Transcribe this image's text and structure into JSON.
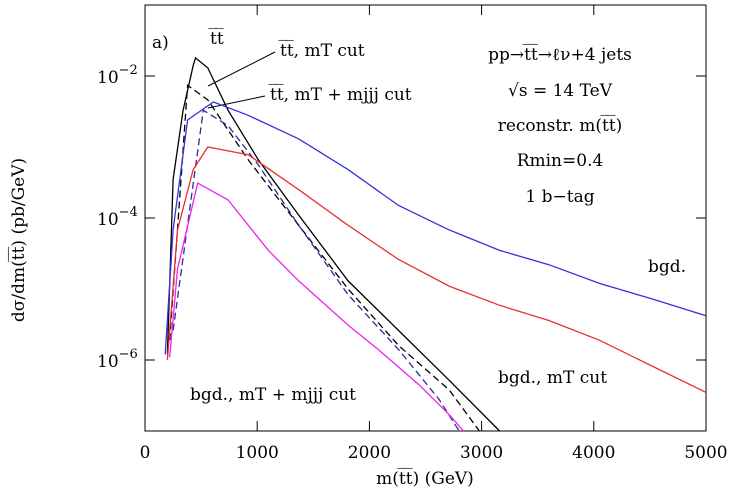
{
  "chart_data": {
    "type": "line",
    "panel_label": "a)",
    "x_label": "m(t̅t̅)  (GeV)",
    "y_label": "dσ/dm(t̅t̅)  (pb/GeV)",
    "annotations": [
      "pp→t̅t̅→ℓν+4 jets",
      "√s = 14 TeV",
      "reconstr. m(t̅t̅)",
      "Rmin=0.4",
      "1 b−tag"
    ],
    "xlim": [
      0,
      5000
    ],
    "xticks": [
      0,
      1000,
      2000,
      3000,
      4000,
      5000
    ],
    "ylim": [
      1e-07,
      0.1
    ],
    "log_y": true,
    "yticks": [
      {
        "value": 0.01,
        "label": "10",
        "exponent": "−2"
      },
      {
        "value": 0.0001,
        "label": "10",
        "exponent": "−4"
      },
      {
        "value": 1e-06,
        "label": "10",
        "exponent": "−6"
      }
    ],
    "series": [
      {
        "name": "t̅t̅",
        "color": "#000000",
        "dashed": false,
        "x": [
          200,
          250,
          340,
          430,
          450,
          560,
          740,
          1010,
          1370,
          1810,
          2260,
          2710,
          3160
        ],
        "values": [
          1.2e-06,
          0.00035,
          0.0033,
          0.014,
          0.018,
          0.013,
          0.0033,
          0.00066,
          0.00011,
          1.3e-05,
          2.6e-06,
          5.2e-07,
          1e-07
        ]
      },
      {
        "name": "t̅t̅, mT cut",
        "color": "#000000",
        "dashed": true,
        "x": [
          220,
          380,
          560,
          920,
          1370,
          1810,
          2260,
          2710,
          2980
        ],
        "values": [
          1.9e-06,
          0.0074,
          0.0046,
          0.00066,
          7.9e-05,
          1e-05,
          1.6e-06,
          3.8e-07,
          1e-07
        ]
      },
      {
        "name": "t̅t̅, mT + mjjj cut",
        "color": "#2a2aa0",
        "dashed": true,
        "x": [
          250,
          520,
          740,
          1010,
          1370,
          1810,
          2260,
          2620,
          2800
        ],
        "values": [
          2.6e-06,
          0.0033,
          0.002,
          0.00056,
          7.9e-05,
          8.3e-06,
          1.4e-06,
          2.8e-07,
          1e-07
        ]
      },
      {
        "name": "bgd.",
        "color": "#3333dd",
        "dashed": false,
        "x": [
          180,
          250,
          380,
          610,
          920,
          1370,
          1810,
          2260,
          2710,
          3160,
          3600,
          4050,
          4500,
          5000
        ],
        "values": [
          1.2e-06,
          6.8e-05,
          0.0024,
          0.0043,
          0.0028,
          0.0013,
          0.00048,
          0.00015,
          6.8e-05,
          3.5e-05,
          2.2e-05,
          1.2e-05,
          7.4e-06,
          4.2e-06
        ]
      },
      {
        "name": "bgd., mT cut",
        "color": "#e83030",
        "dashed": false,
        "x": [
          200,
          290,
          430,
          560,
          920,
          1370,
          1810,
          2260,
          2710,
          3160,
          3600,
          4050,
          4500,
          5000
        ],
        "values": [
          1e-06,
          6.8e-05,
          0.00048,
          0.001,
          0.00078,
          0.00025,
          7.9e-05,
          2.6e-05,
          1.1e-05,
          5.9e-06,
          3.6e-06,
          1.9e-06,
          8.5e-07,
          3.5e-07
        ]
      },
      {
        "name": "bgd., mT + mjjj cut",
        "color": "#ee22ee",
        "dashed": false,
        "x": [
          220,
          290,
          470,
          740,
          1100,
          1370,
          1810,
          2080,
          2440,
          2710,
          2840
        ],
        "values": [
          1.1e-06,
          1.9e-05,
          0.00031,
          0.00018,
          3.5e-05,
          1.3e-05,
          3.1e-06,
          1.4e-06,
          4.5e-07,
          1.7e-07,
          1e-07
        ]
      }
    ]
  }
}
